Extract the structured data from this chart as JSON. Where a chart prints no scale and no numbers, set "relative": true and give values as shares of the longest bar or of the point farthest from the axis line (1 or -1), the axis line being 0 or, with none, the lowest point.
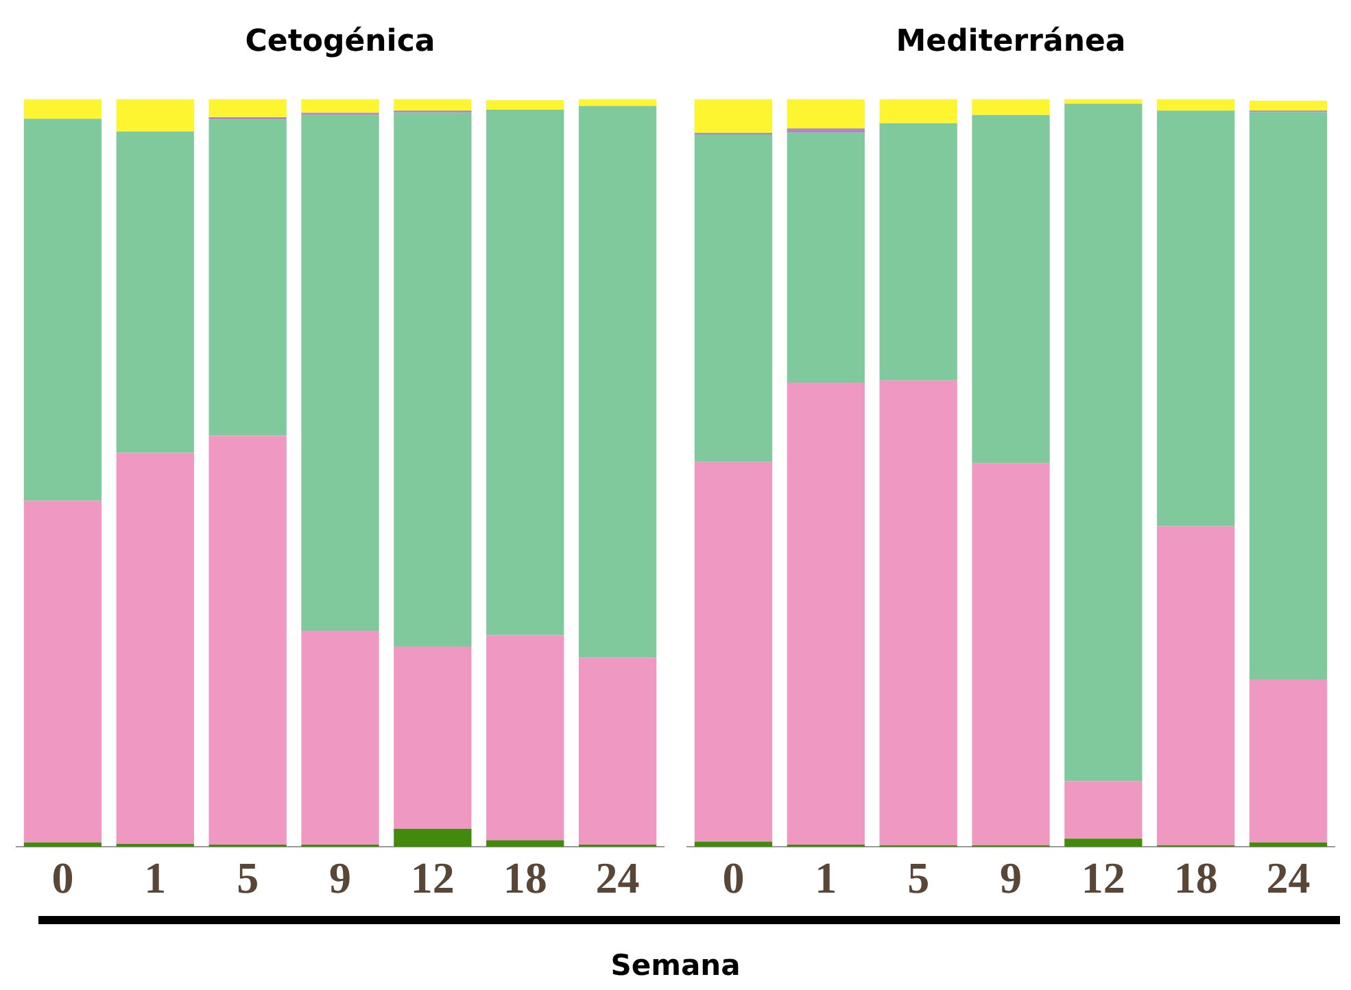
{
  "chart_data": [
    {
      "type": "bar",
      "title": "Cetogénica",
      "xlabel": "Semana",
      "relative": true,
      "stacked": true,
      "grid": false,
      "legend": false,
      "categories": [
        "0",
        "1",
        "5",
        "9",
        "12",
        "18",
        "24"
      ],
      "series": [
        {
          "color": "#438a0c",
          "values": [
            0.006,
            0.004,
            0.003,
            0.003,
            0.024,
            0.009,
            0.003
          ]
        },
        {
          "color": "#ee98c2",
          "values": [
            0.457,
            0.523,
            0.547,
            0.286,
            0.244,
            0.274,
            0.25
          ]
        },
        {
          "color": "#80c99c",
          "values": [
            0.511,
            0.43,
            0.423,
            0.69,
            0.714,
            0.703,
            0.738
          ]
        },
        {
          "color": "#a98bc1",
          "values": [
            0,
            0,
            0.003,
            0.003,
            0.003,
            0,
            0
          ]
        },
        {
          "color": "#fdf52f",
          "values": [
            0.026,
            0.043,
            0.024,
            0.018,
            0.015,
            0.013,
            0.009
          ]
        }
      ]
    },
    {
      "type": "bar",
      "title": "Mediterránea",
      "relative": true,
      "stacked": true,
      "grid": false,
      "legend": false,
      "categories": [
        "0",
        "1",
        "5",
        "9",
        "12",
        "18",
        "24"
      ],
      "series": [
        {
          "color": "#438a0c",
          "values": [
            0.007,
            0.003,
            0.002,
            0.002,
            0.011,
            0.002,
            0.006
          ]
        },
        {
          "color": "#ee98c2",
          "values": [
            0.508,
            0.618,
            0.622,
            0.511,
            0.077,
            0.427,
            0.218
          ]
        },
        {
          "color": "#80c99c",
          "values": [
            0.438,
            0.334,
            0.344,
            0.466,
            0.906,
            0.556,
            0.759
          ]
        },
        {
          "color": "#a98bc1",
          "values": [
            0.002,
            0.006,
            0,
            0,
            0,
            0,
            0.002
          ]
        },
        {
          "color": "#fdf52f",
          "values": [
            0.045,
            0.039,
            0.032,
            0.021,
            0.006,
            0.015,
            0.013
          ]
        }
      ]
    }
  ]
}
